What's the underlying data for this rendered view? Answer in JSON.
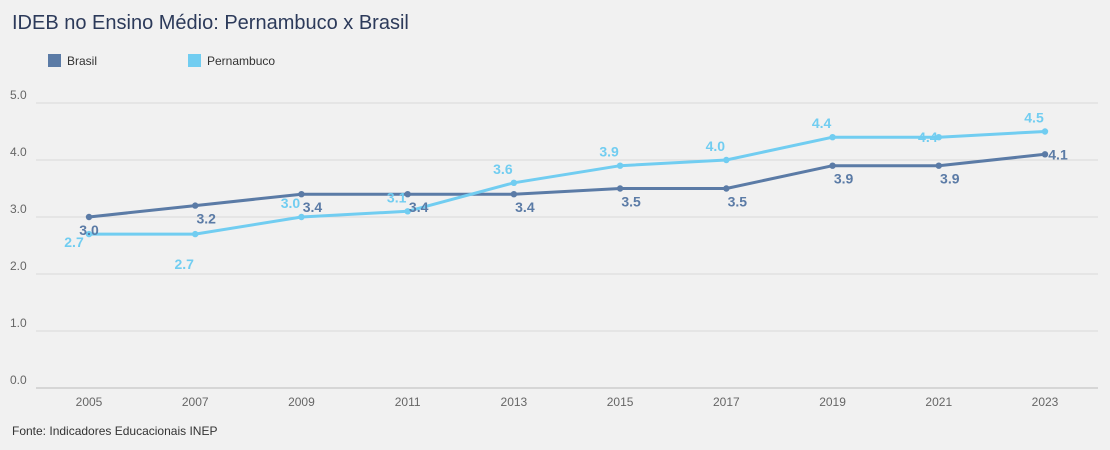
{
  "title": "IDEB no Ensino Médio: Pernambuco x Brasil",
  "source": "Fonte: Indicadores Educacionais INEP",
  "colors": {
    "Brasil": "#5b7ba6",
    "Pernambuco": "#71cdf1"
  },
  "chart_data": {
    "type": "line",
    "title": "IDEB no Ensino Médio: Pernambuco x Brasil",
    "xlabel": "",
    "ylabel": "",
    "categories": [
      "2005",
      "2007",
      "2009",
      "2011",
      "2013",
      "2015",
      "2017",
      "2019",
      "2021",
      "2023"
    ],
    "ylim": [
      0,
      5
    ],
    "yticks": [
      "0.0",
      "1.0",
      "2.0",
      "3.0",
      "4.0",
      "5.0"
    ],
    "grid": true,
    "legend_position": "top-left",
    "series": [
      {
        "name": "Brasil",
        "values": [
          3.0,
          3.2,
          3.4,
          3.4,
          3.4,
          3.5,
          3.5,
          3.9,
          3.9,
          4.1
        ]
      },
      {
        "name": "Pernambuco",
        "values": [
          2.7,
          2.7,
          3.0,
          3.1,
          3.6,
          3.9,
          4.0,
          4.4,
          4.4,
          4.5
        ]
      }
    ]
  }
}
